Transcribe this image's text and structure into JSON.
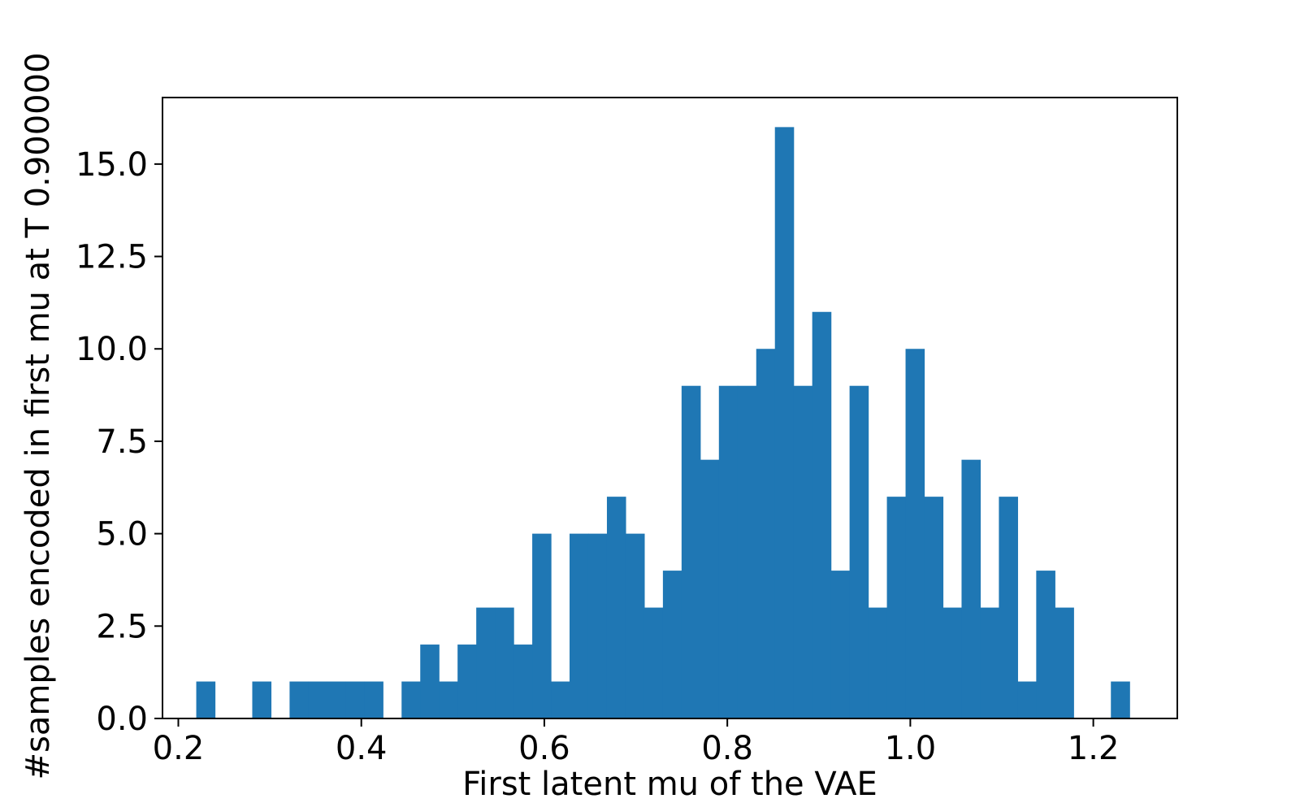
{
  "chart_data": {
    "type": "bar",
    "subtype": "histogram",
    "title": "",
    "xlabel": "First latent mu of the VAE",
    "ylabel": "#samples encoded in first mu at T 0.900000",
    "xlim": [
      0.1827,
      1.2918
    ],
    "ylim": [
      0,
      16.8
    ],
    "bin_start": 0.2196,
    "bin_width": 0.0204,
    "counts": [
      1,
      0,
      0,
      1,
      0,
      1,
      1,
      1,
      1,
      1,
      0,
      1,
      2,
      1,
      2,
      3,
      3,
      2,
      5,
      1,
      5,
      5,
      6,
      5,
      3,
      4,
      9,
      7,
      9,
      9,
      10,
      16,
      9,
      11,
      4,
      9,
      3,
      6,
      10,
      6,
      3,
      7,
      3,
      6,
      1,
      4,
      3,
      0,
      0,
      1
    ],
    "x_ticks": [
      0.2,
      0.4,
      0.6,
      0.8,
      1.0,
      1.2
    ],
    "x_tick_labels": [
      "0.2",
      "0.4",
      "0.6",
      "0.8",
      "1.0",
      "1.2"
    ],
    "y_ticks": [
      0,
      2.5,
      5,
      7.5,
      10,
      12.5,
      15
    ],
    "y_tick_labels": [
      "0.0",
      "2.5",
      "5.0",
      "7.5",
      "10.0",
      "12.5",
      "15.0"
    ],
    "bar_color": "#1f77b4",
    "grid": false,
    "legend": "none"
  }
}
